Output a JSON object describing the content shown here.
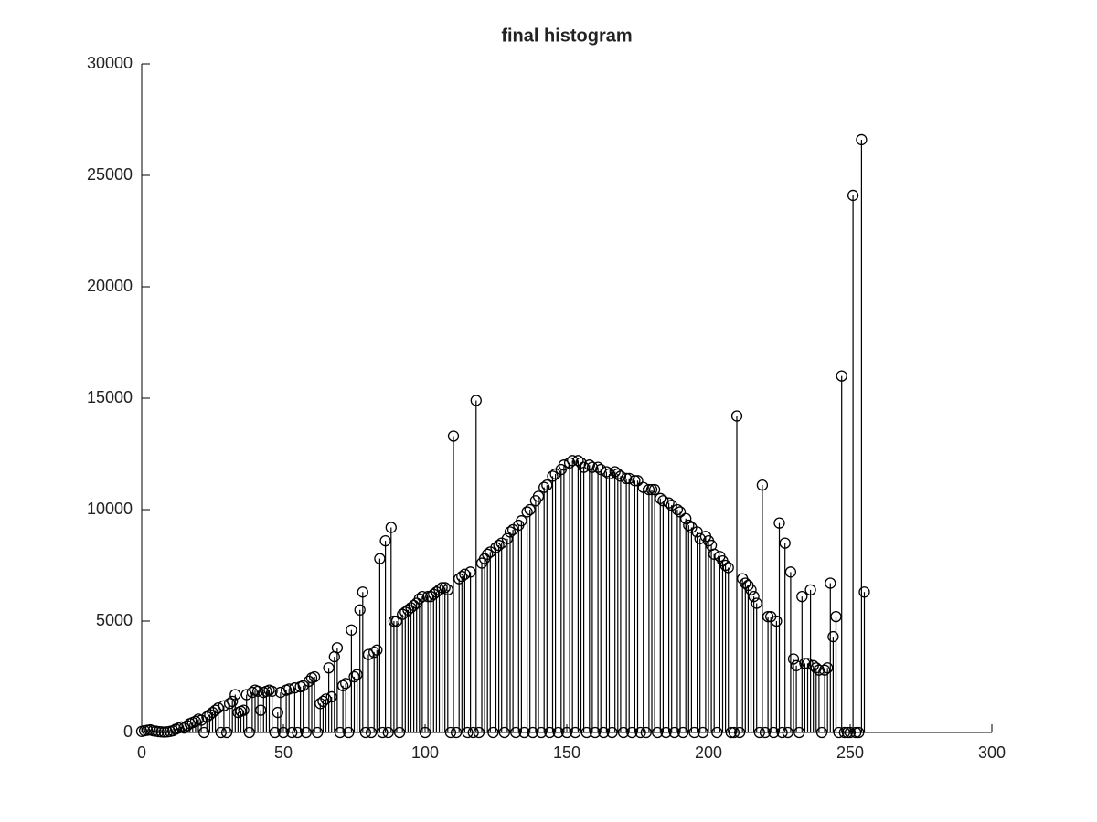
{
  "chart_data": {
    "type": "stem",
    "title": "final histogram",
    "x": [
      0,
      1,
      2,
      3,
      4,
      5,
      6,
      7,
      8,
      9,
      10,
      11,
      12,
      13,
      14,
      15,
      16,
      17,
      18,
      19,
      20,
      21,
      22,
      23,
      24,
      25,
      26,
      27,
      28,
      29,
      30,
      31,
      32,
      33,
      34,
      35,
      36,
      37,
      38,
      39,
      40,
      41,
      42,
      43,
      44,
      45,
      46,
      47,
      48,
      49,
      50,
      51,
      52,
      53,
      54,
      55,
      56,
      57,
      58,
      59,
      60,
      61,
      62,
      63,
      64,
      65,
      66,
      67,
      68,
      69,
      70,
      71,
      72,
      73,
      74,
      75,
      76,
      77,
      78,
      79,
      80,
      81,
      82,
      83,
      84,
      85,
      86,
      87,
      88,
      89,
      90,
      91,
      92,
      93,
      94,
      95,
      96,
      97,
      98,
      99,
      100,
      101,
      102,
      103,
      104,
      105,
      106,
      107,
      108,
      109,
      110,
      111,
      112,
      113,
      114,
      115,
      116,
      117,
      118,
      119,
      120,
      121,
      122,
      123,
      124,
      125,
      126,
      127,
      128,
      129,
      130,
      131,
      132,
      133,
      134,
      135,
      136,
      137,
      138,
      139,
      140,
      141,
      142,
      143,
      144,
      145,
      146,
      147,
      148,
      149,
      150,
      151,
      152,
      153,
      154,
      155,
      156,
      157,
      158,
      159,
      160,
      161,
      162,
      163,
      164,
      165,
      166,
      167,
      168,
      169,
      170,
      171,
      172,
      173,
      174,
      175,
      176,
      177,
      178,
      179,
      180,
      181,
      182,
      183,
      184,
      185,
      186,
      187,
      188,
      189,
      190,
      191,
      192,
      193,
      194,
      195,
      196,
      197,
      198,
      199,
      200,
      201,
      202,
      203,
      204,
      205,
      206,
      207,
      208,
      209,
      210,
      211,
      212,
      213,
      214,
      215,
      216,
      217,
      218,
      219,
      220,
      221,
      222,
      223,
      224,
      225,
      226,
      227,
      228,
      229,
      230,
      231,
      232,
      233,
      234,
      235,
      236,
      237,
      238,
      239,
      240,
      241,
      242,
      243,
      244,
      245,
      246,
      247,
      248,
      249,
      250,
      251,
      252,
      253,
      254,
      255
    ],
    "values": [
      50,
      80,
      100,
      120,
      80,
      60,
      40,
      30,
      20,
      30,
      50,
      80,
      150,
      200,
      250,
      200,
      300,
      400,
      450,
      500,
      600,
      550,
      0,
      700,
      800,
      900,
      1000,
      1100,
      0,
      1200,
      0,
      1300,
      1400,
      1700,
      900,
      950,
      1000,
      1700,
      0,
      1800,
      1900,
      1850,
      1000,
      1800,
      1850,
      1900,
      1850,
      0,
      900,
      1800,
      0,
      1900,
      1950,
      0,
      2000,
      0,
      2050,
      2100,
      0,
      2300,
      2450,
      2500,
      0,
      1300,
      1400,
      1500,
      2900,
      1600,
      3400,
      3800,
      0,
      2100,
      2200,
      0,
      4600,
      2500,
      2600,
      5500,
      6300,
      0,
      3500,
      0,
      3600,
      3700,
      7800,
      0,
      8600,
      0,
      9200,
      5000,
      5000,
      0,
      5300,
      5400,
      5500,
      5600,
      5700,
      5800,
      6000,
      6100,
      0,
      6100,
      6100,
      6200,
      6300,
      6400,
      6500,
      6500,
      6400,
      0,
      13300,
      0,
      6900,
      7000,
      7100,
      0,
      7200,
      0,
      14900,
      0,
      7600,
      7800,
      8000,
      8100,
      0,
      8300,
      8400,
      8500,
      0,
      8700,
      9000,
      9100,
      0,
      9300,
      9500,
      0,
      9900,
      10000,
      0,
      10400,
      10600,
      0,
      11000,
      11100,
      0,
      11500,
      11600,
      0,
      11800,
      12000,
      0,
      12100,
      12200,
      0,
      12200,
      12100,
      11900,
      0,
      12000,
      11900,
      0,
      11900,
      11800,
      0,
      11700,
      11600,
      0,
      11700,
      11600,
      11500,
      0,
      11400,
      11400,
      0,
      11300,
      11300,
      0,
      11000,
      0,
      10900,
      10900,
      10900,
      0,
      10500,
      10400,
      0,
      10300,
      10200,
      0,
      10000,
      9900,
      0,
      9600,
      9300,
      9200,
      0,
      9000,
      8700,
      0,
      8800,
      8600,
      8400,
      8000,
      0,
      7900,
      7700,
      7500,
      7400,
      0,
      0,
      14200,
      0,
      6900,
      6700,
      6600,
      6400,
      6100,
      5800,
      0,
      11100,
      0,
      5200,
      5200,
      0,
      5000,
      9400,
      0,
      8500,
      0,
      7200,
      3300,
      3000,
      0,
      6100,
      3100,
      3100,
      6400,
      3000,
      2900,
      2800,
      0,
      2800,
      2900,
      6700,
      4300,
      5200,
      0,
      16000,
      0,
      0,
      0,
      24100,
      0,
      0,
      26600,
      6300
    ],
    "color": "#000000",
    "xlim": [
      0,
      300
    ],
    "xticks": [
      0,
      50,
      100,
      150,
      200,
      250,
      300
    ],
    "ylim": [
      0,
      30000
    ],
    "yticks": [
      0,
      5000,
      10000,
      15000,
      20000,
      25000,
      30000
    ]
  }
}
